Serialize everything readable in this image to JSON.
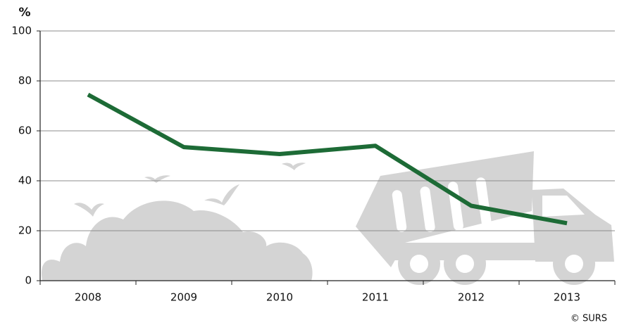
{
  "chart_data": {
    "type": "line",
    "y_label": "%",
    "source": "© SURS",
    "categories": [
      "2008",
      "2009",
      "2010",
      "2011",
      "2012",
      "2013"
    ],
    "values": [
      74.5,
      53.5,
      50.7,
      54,
      30,
      23
    ],
    "color": "#1d6b36",
    "ylim": [
      0,
      100
    ],
    "yticks": [
      0,
      20,
      40,
      60,
      80,
      100
    ],
    "grid": true
  }
}
